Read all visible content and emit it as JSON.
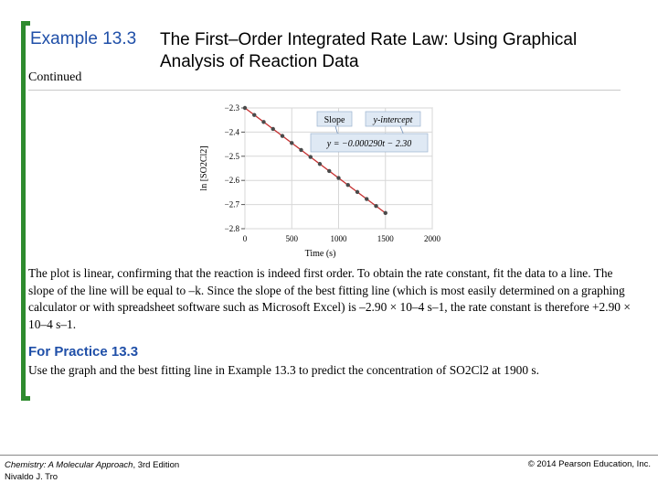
{
  "header": {
    "example_number": "Example 13.3",
    "title": "The First–Order Integrated Rate Law: Using Graphical Analysis of Reaction Data",
    "continued": "Continued"
  },
  "chart_data": {
    "type": "scatter",
    "xlabel": "Time (s)",
    "ylabel": "ln [SO2Cl2]",
    "xlim": [
      0,
      2000
    ],
    "ylim": [
      -2.8,
      -2.3
    ],
    "xticks": [
      "0",
      "500",
      "1000",
      "1500",
      "2000"
    ],
    "yticks": [
      "-2.3",
      "-2.4",
      "-2.5",
      "-2.6",
      "-2.7",
      "-2.8"
    ],
    "grid": true,
    "fit_line": {
      "slope": -0.00029,
      "intercept": -2.3
    },
    "points": [
      {
        "x": 0,
        "y": -2.3
      },
      {
        "x": 100,
        "y": -2.329
      },
      {
        "x": 200,
        "y": -2.358
      },
      {
        "x": 300,
        "y": -2.387
      },
      {
        "x": 400,
        "y": -2.416
      },
      {
        "x": 500,
        "y": -2.445
      },
      {
        "x": 600,
        "y": -2.474
      },
      {
        "x": 700,
        "y": -2.503
      },
      {
        "x": 800,
        "y": -2.532
      },
      {
        "x": 900,
        "y": -2.561
      },
      {
        "x": 1000,
        "y": -2.59
      },
      {
        "x": 1100,
        "y": -2.619
      },
      {
        "x": 1200,
        "y": -2.648
      },
      {
        "x": 1300,
        "y": -2.677
      },
      {
        "x": 1400,
        "y": -2.706
      },
      {
        "x": 1500,
        "y": -2.735
      }
    ],
    "annotations": {
      "slope_label": "Slope",
      "intercept_label": "y-intercept",
      "equation": "y = −0.000290t − 2.30"
    },
    "colors": {
      "points": "#4a4a4a",
      "line": "#c43030",
      "grid": "#d7d7d7",
      "callout": "#dfe9f4"
    }
  },
  "body": {
    "paragraph": "The plot is linear, confirming that the reaction is indeed first order. To obtain the rate constant, fit the data to a line. The slope of the line will be equal to –k. Since the slope of the best fitting line (which is most easily determined on a graphing calculator or with spreadsheet software such as Microsoft Excel) is –2.90 × 10–4 s–1, the rate constant is therefore +2.90 × 10–4 s–1."
  },
  "practice": {
    "heading": "For Practice 13.3",
    "text": "Use the graph and the best fitting line in Example 13.3 to predict the concentration of SO2Cl2 at 1900 s."
  },
  "footer": {
    "book_title": "Chemistry: A Molecular Approach",
    "edition": ", 3rd Edition",
    "author": "Nivaldo J. Tro",
    "copyright": "© 2014 Pearson Education, Inc."
  }
}
